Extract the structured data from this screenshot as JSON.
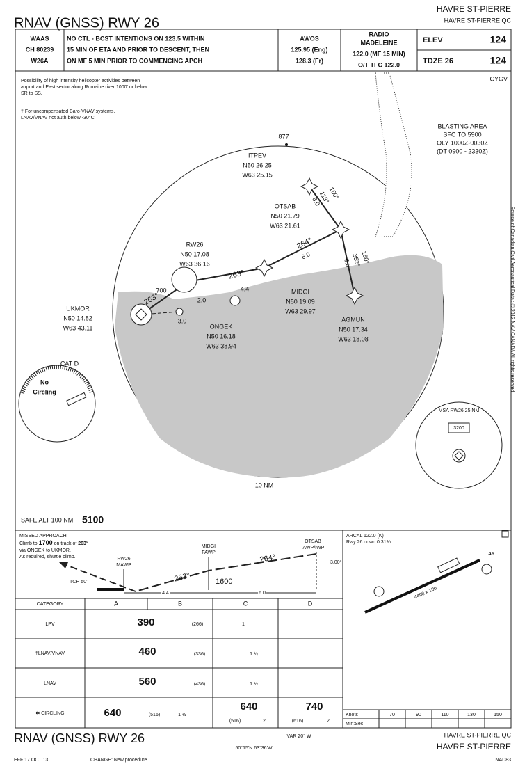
{
  "header": {
    "title": "RNAV (GNSS) RWY 26",
    "airport": "HAVRE ST-PIERRE",
    "airport_qc": "HAVRE ST-PIERRE  QC"
  },
  "briefing": {
    "system": [
      "WAAS",
      "CH 80239",
      "W26A"
    ],
    "notes": [
      "NO CTL - BCST INTENTIONS ON 123.5 WITHIN",
      "15 MIN OF ETA AND PRIOR TO DESCENT, THEN",
      "ON MF 5 MIN PRIOR TO COMMENCING APCH"
    ],
    "awos": [
      "AWOS",
      "125.95 (Eng)",
      "128.3 (Fr)"
    ],
    "radio": [
      "RADIO",
      "MADELEINE",
      "122.0 (MF 15 MIN)",
      "O/T TFC 122.0"
    ],
    "elev_label": "ELEV",
    "elev": "124",
    "tdze_label": "TDZE 26",
    "tdze": "124"
  },
  "plan_view": {
    "ident": "CYGV",
    "note_helicopter": [
      "Possibility of high intensity helicopter activities between",
      "airport and East sector along Romaine river 1000' or below.",
      "SR to SS."
    ],
    "note_baro": [
      "† For uncompensated Baro-VNAV systems,",
      "LNAV/VNAV not auth below -30°C."
    ],
    "blasting": [
      "BLASTING AREA",
      "SFC TO 5900",
      "OLY 1000Z-0030Z",
      "(DT 0900 - 2330Z)"
    ],
    "spot_heights": [
      "877",
      "700"
    ],
    "waypoints": [
      {
        "name": "ITPEV",
        "lat": "N50 26.25",
        "lon": "W63 25.15"
      },
      {
        "name": "OTSAB",
        "lat": "N50 21.79",
        "lon": "W63 21.61"
      },
      {
        "name": "MIDGI",
        "lat": "N50 19.09",
        "lon": "W63 29.97"
      },
      {
        "name": "AGMUN",
        "lat": "N50 17.34",
        "lon": "W63 18.08"
      },
      {
        "name": "RW26",
        "lat": "N50 17.08",
        "lon": "W63 36.16"
      },
      {
        "name": "ONGEK",
        "lat": "N50 16.18",
        "lon": "W63 38.94"
      },
      {
        "name": "UKMOR",
        "lat": "N50 14.82",
        "lon": "W63 43.11"
      }
    ],
    "courses": [
      "264°",
      "6.0",
      "263°",
      "4.4",
      "263°",
      "3.0",
      "2.0",
      "160°",
      "113°",
      "6.0",
      "160°",
      "352°",
      "6.0"
    ],
    "range_ring": "10 NM",
    "circling": {
      "cat": "CAT D",
      "text": [
        "No",
        "Circling"
      ]
    },
    "msa": {
      "label": "MSA RW26 25 NM",
      "alt": "3200"
    },
    "safe_alt_label": "SAFE ALT 100 NM",
    "safe_alt": "5100",
    "source": "Source of Canadian Civil Aeronautical Data : © 2013 NAV CANADA All rights reserved"
  },
  "profile": {
    "missed_title": "MISSED APPROACH",
    "missed": [
      "Climb to",
      "1700",
      "on track of",
      "263°",
      "via ONGEK to UKMOR.",
      "As required, shuttle climb."
    ],
    "otsab": [
      "OTSAB",
      "IAWP/IWP"
    ],
    "midgi": [
      "MIDGI",
      "FAWP"
    ],
    "rw26": [
      "RW26",
      "MAWP"
    ],
    "course_in": "264°",
    "course_final": "263°",
    "fawp_alt": "1600",
    "gpa": "3.00°",
    "tch": "TCH 50'",
    "dist": [
      "4.4",
      "6.0"
    ]
  },
  "minima": {
    "header": [
      "CATEGORY",
      "A",
      "B",
      "C",
      "D"
    ],
    "lpv": [
      "LPV",
      "390",
      "(266)",
      "1"
    ],
    "lnav_vnav": [
      "†LNAV/VNAV",
      "460",
      "(336)",
      "1 ¼"
    ],
    "lnav": [
      "LNAV",
      "560",
      "(436)",
      "1 ½"
    ],
    "circling": [
      "✱ CIRCLING",
      "640",
      "(516)",
      "1 ½",
      "640",
      "(516)",
      "2",
      "740",
      "(616)",
      "2"
    ]
  },
  "airport": {
    "notes": [
      "ARCAL 122.0 (K)",
      "Rwy 26 down 0.31%"
    ],
    "runway": "4498 x 100",
    "rwy_label": "A5",
    "times": {
      "knots": [
        "Knots",
        "70",
        "90",
        "110",
        "130",
        "150"
      ],
      "minsec": "Min:Sec"
    }
  },
  "footer": {
    "title": "RNAV (GNSS) RWY 26",
    "var": "VAR 20° W",
    "coords": "50°15'N 63°36'W",
    "eff": "EFF 17 OCT 13",
    "change": "CHANGE: New procedure",
    "airport_qc": "HAVRE ST-PIERRE  QC",
    "airport": "HAVRE ST-PIERRE",
    "datum": "NAD83"
  }
}
